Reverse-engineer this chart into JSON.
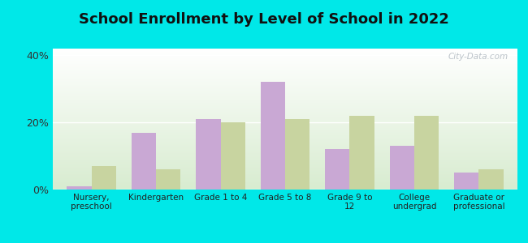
{
  "title": "School Enrollment by Level of School in 2022",
  "categories": [
    "Nursery,\npreschool",
    "Kindergarten",
    "Grade 1 to 4",
    "Grade 5 to 8",
    "Grade 9 to\n12",
    "College\nundergrad",
    "Graduate or\nprofessional"
  ],
  "zip_values": [
    1,
    17,
    21,
    32,
    12,
    13,
    5
  ],
  "al_values": [
    7,
    6,
    20,
    21,
    22,
    22,
    6
  ],
  "zip_color": "#c9a8d4",
  "al_color": "#c8d4a0",
  "background_outer": "#00e8e8",
  "background_inner_top": "#ffffff",
  "background_inner_bottom": "#d8ecd0",
  "ylim": [
    0,
    42
  ],
  "yticks": [
    0,
    20,
    40
  ],
  "ytick_labels": [
    "0%",
    "20%",
    "40%"
  ],
  "bar_width": 0.38,
  "title_fontsize": 13,
  "watermark": "City-Data.com"
}
